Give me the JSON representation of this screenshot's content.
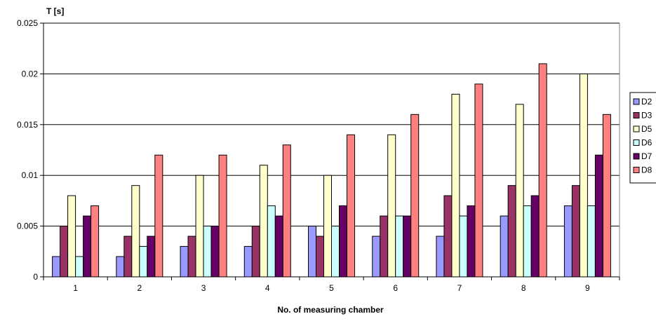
{
  "chart_data": {
    "type": "bar",
    "ylabel": "T [s]",
    "xlabel": "No. of measuring chamber",
    "categories": [
      "1",
      "2",
      "3",
      "4",
      "5",
      "6",
      "7",
      "8",
      "9"
    ],
    "ylim": [
      0,
      0.025
    ],
    "yticks": [
      "0",
      "0.005",
      "0.01",
      "0.015",
      "0.02",
      "0.025"
    ],
    "grid": "horizontal",
    "legend_position": "right",
    "series": [
      {
        "name": "D2",
        "color": "#9999FF",
        "values": [
          0.002,
          0.002,
          0.003,
          0.003,
          0.005,
          0.004,
          0.004,
          0.006,
          0.007
        ]
      },
      {
        "name": "D3",
        "color": "#993366",
        "values": [
          0.005,
          0.004,
          0.004,
          0.005,
          0.004,
          0.006,
          0.008,
          0.009,
          0.009
        ]
      },
      {
        "name": "D5",
        "color": "#FFFFCC",
        "values": [
          0.008,
          0.009,
          0.01,
          0.011,
          0.01,
          0.014,
          0.018,
          0.017,
          0.02
        ]
      },
      {
        "name": "D6",
        "color": "#CCFFFF",
        "values": [
          0.002,
          0.003,
          0.005,
          0.007,
          0.005,
          0.006,
          0.006,
          0.007,
          0.007
        ]
      },
      {
        "name": "D7",
        "color": "#660066",
        "values": [
          0.006,
          0.004,
          0.005,
          0.006,
          0.007,
          0.006,
          0.007,
          0.008,
          0.012
        ]
      },
      {
        "name": "D8",
        "color": "#FF8080",
        "values": [
          0.007,
          0.012,
          0.012,
          0.013,
          0.014,
          0.016,
          0.019,
          0.021,
          0.016
        ]
      }
    ]
  }
}
